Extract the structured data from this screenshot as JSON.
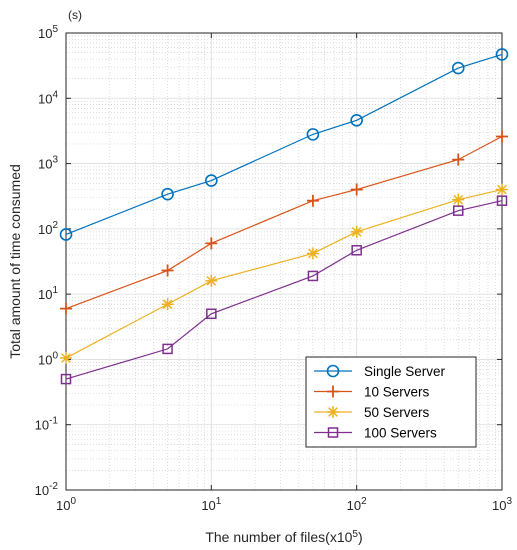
{
  "chart_data": {
    "type": "line",
    "x_scale": "log",
    "y_scale": "log",
    "xlim": [
      1,
      1000
    ],
    "ylim": [
      0.01,
      100000
    ],
    "grid": "on (major solid, minor dotted)",
    "legend_position": "lower-right",
    "xlabel": "The number of files(x10^5)",
    "xlabel_parts": {
      "main": "The number of files(x10",
      "sup": "5",
      "tail": ")"
    },
    "ylabel": "Total amount of time consumed",
    "y_unit": "(s)",
    "x_ticks": [
      {
        "value": 1,
        "base": "10",
        "exp": "0"
      },
      {
        "value": 10,
        "base": "10",
        "exp": "1"
      },
      {
        "value": 100,
        "base": "10",
        "exp": "2"
      },
      {
        "value": 1000,
        "base": "10",
        "exp": "3"
      }
    ],
    "y_ticks": [
      {
        "value": 0.01,
        "base": "10",
        "exp": "-2"
      },
      {
        "value": 0.1,
        "base": "10",
        "exp": "-1"
      },
      {
        "value": 1,
        "base": "10",
        "exp": "0"
      },
      {
        "value": 10,
        "base": "10",
        "exp": "1"
      },
      {
        "value": 100,
        "base": "10",
        "exp": "2"
      },
      {
        "value": 1000,
        "base": "10",
        "exp": "3"
      },
      {
        "value": 10000,
        "base": "10",
        "exp": "4"
      },
      {
        "value": 100000,
        "base": "10",
        "exp": "5"
      }
    ],
    "x": [
      1,
      5,
      10,
      50,
      100,
      500,
      1000
    ],
    "series": [
      {
        "name": "Single Server",
        "color": "#0072BD",
        "marker": "circle",
        "values": [
          82,
          340,
          550,
          2800,
          4600,
          29000,
          47000
        ]
      },
      {
        "name": "10 Servers",
        "color": "#D95319",
        "marker": "plus",
        "values": [
          6,
          23,
          60,
          270,
          400,
          1150,
          2600
        ]
      },
      {
        "name": "50 Servers",
        "color": "#EDB120",
        "marker": "asterisk",
        "values": [
          1.05,
          7,
          16,
          42,
          90,
          280,
          400
        ]
      },
      {
        "name": "100 Servers",
        "color": "#7E2F8E",
        "marker": "square",
        "values": [
          0.5,
          1.45,
          5,
          19,
          47,
          190,
          270
        ]
      }
    ]
  }
}
